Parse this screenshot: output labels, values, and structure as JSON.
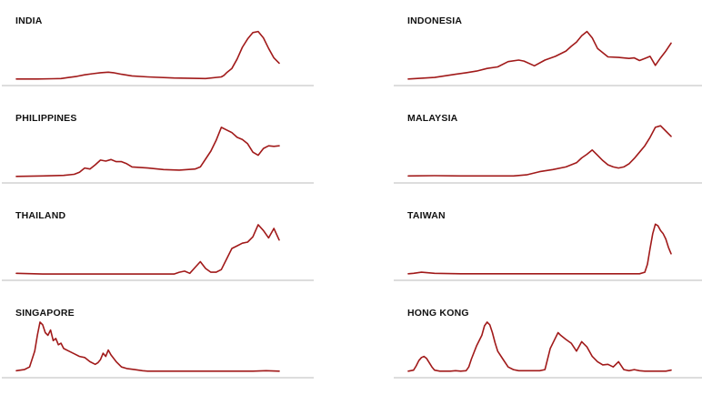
{
  "style": {
    "line_color": "#a11a1a",
    "baseline_color": "#bbbbbb",
    "label_color": "#111111"
  },
  "chart_data": [
    {
      "type": "line",
      "title": "INDIA",
      "grid": false,
      "x": [
        0,
        8,
        14,
        17,
        20,
        23,
        26,
        29,
        32,
        35,
        37,
        40,
        44,
        50,
        60,
        72,
        78,
        79,
        80,
        82,
        84,
        86,
        88,
        90,
        92,
        94,
        96,
        98,
        100
      ],
      "y": [
        2,
        2,
        2.5,
        3,
        5,
        7,
        10,
        12,
        14,
        15,
        14,
        11,
        8,
        6,
        4,
        3,
        6,
        9,
        14,
        22,
        40,
        62,
        78,
        90,
        92,
        80,
        60,
        42,
        32
      ]
    },
    {
      "type": "line",
      "title": "INDONESIA",
      "grid": false,
      "x": [
        0,
        10,
        18,
        22,
        26,
        30,
        34,
        38,
        42,
        44,
        48,
        52,
        56,
        60,
        62,
        64,
        66,
        68,
        70,
        72,
        76,
        80,
        84,
        86,
        88,
        90,
        92,
        94,
        96,
        98,
        100
      ],
      "y": [
        2,
        5,
        11,
        14,
        17,
        22,
        25,
        35,
        38,
        36,
        27,
        38,
        45,
        55,
        64,
        72,
        84,
        92,
        80,
        60,
        44,
        43,
        41,
        42,
        37,
        41,
        45,
        28,
        42,
        55,
        70
      ]
    },
    {
      "type": "line",
      "title": "PHILIPPINES",
      "grid": false,
      "x": [
        0,
        10,
        18,
        22,
        24,
        26,
        28,
        30,
        32,
        34,
        36,
        38,
        40,
        42,
        44,
        50,
        56,
        62,
        68,
        70,
        74,
        76,
        78,
        80,
        82,
        84,
        86,
        88,
        90,
        92,
        94,
        96,
        98,
        100
      ],
      "y": [
        2,
        3,
        4,
        6,
        10,
        18,
        16,
        24,
        33,
        31,
        34,
        30,
        30,
        26,
        20,
        18,
        15,
        14,
        16,
        20,
        50,
        70,
        95,
        90,
        85,
        76,
        72,
        64,
        48,
        42,
        55,
        60,
        59,
        60
      ]
    },
    {
      "type": "line",
      "title": "MALAYSIA",
      "grid": false,
      "x": [
        0,
        10,
        20,
        30,
        40,
        45,
        50,
        55,
        60,
        64,
        66,
        68,
        70,
        72,
        74,
        76,
        78,
        80,
        82,
        84,
        86,
        88,
        90,
        92,
        94,
        96,
        98,
        100
      ],
      "y": [
        3,
        3.5,
        3,
        3,
        3,
        5,
        11,
        15,
        20,
        28,
        37,
        44,
        52,
        42,
        32,
        24,
        20,
        18,
        20,
        26,
        36,
        48,
        60,
        76,
        95,
        98,
        88,
        78
      ]
    },
    {
      "type": "line",
      "title": "THAILAND",
      "grid": false,
      "x": [
        0,
        10,
        20,
        30,
        40,
        50,
        60,
        62,
        64,
        66,
        68,
        70,
        72,
        74,
        76,
        78,
        80,
        82,
        84,
        86,
        88,
        90,
        92,
        94,
        96,
        98,
        100
      ],
      "y": [
        3,
        1.5,
        1.5,
        1.5,
        1.5,
        1.5,
        1.5,
        5,
        7,
        3,
        14,
        25,
        12,
        5,
        5,
        10,
        30,
        50,
        55,
        60,
        62,
        72,
        95,
        84,
        70,
        88,
        66
      ]
    },
    {
      "type": "line",
      "title": "TAIWAN",
      "grid": false,
      "x": [
        0,
        2,
        5,
        10,
        20,
        30,
        40,
        50,
        60,
        70,
        80,
        88,
        90,
        91,
        92,
        93,
        94,
        95,
        96,
        97,
        98,
        99,
        100
      ],
      "y": [
        2,
        3,
        5,
        3,
        2,
        2,
        2,
        2,
        2,
        2,
        2,
        2,
        5,
        20,
        50,
        78,
        96,
        93,
        84,
        78,
        68,
        52,
        40
      ]
    },
    {
      "type": "line",
      "title": "SINGAPORE",
      "grid": false,
      "x": [
        0,
        3,
        5,
        7,
        8,
        9,
        10,
        11,
        12,
        13,
        14,
        15,
        16,
        17,
        18,
        20,
        22,
        24,
        26,
        28,
        30,
        31,
        32,
        33,
        34,
        35,
        36,
        38,
        40,
        42,
        45,
        48,
        50,
        55,
        60,
        70,
        80,
        90,
        95,
        100
      ],
      "y": [
        3,
        5,
        10,
        40,
        70,
        95,
        90,
        75,
        70,
        80,
        60,
        64,
        52,
        55,
        45,
        40,
        35,
        30,
        28,
        20,
        15,
        18,
        24,
        36,
        30,
        42,
        33,
        20,
        10,
        7,
        5,
        3,
        2,
        2,
        2,
        2,
        2,
        2,
        3,
        2
      ]
    },
    {
      "type": "line",
      "title": "HONG KONG",
      "grid": false,
      "x": [
        0,
        2,
        3,
        4,
        5,
        6,
        7,
        8,
        9,
        10,
        12,
        14,
        16,
        18,
        20,
        22,
        23,
        24,
        26,
        28,
        29,
        30,
        31,
        32,
        33,
        34,
        36,
        38,
        40,
        42,
        44,
        46,
        48,
        50,
        52,
        54,
        56,
        57,
        58,
        60,
        62,
        64,
        66,
        68,
        70,
        72,
        74,
        76,
        78,
        80,
        82,
        84,
        86,
        88,
        90,
        92,
        94,
        96,
        98,
        100
      ],
      "y": [
        2,
        4,
        12,
        22,
        28,
        30,
        26,
        18,
        10,
        4,
        2,
        2,
        2,
        3,
        2,
        3,
        10,
        25,
        50,
        70,
        88,
        95,
        90,
        75,
        56,
        40,
        25,
        10,
        5,
        3,
        3,
        3,
        3,
        3,
        5,
        45,
        65,
        75,
        70,
        62,
        55,
        40,
        58,
        48,
        30,
        20,
        14,
        15,
        10,
        20,
        5,
        3,
        5,
        3,
        2,
        2,
        2,
        2,
        2,
        4
      ]
    }
  ]
}
